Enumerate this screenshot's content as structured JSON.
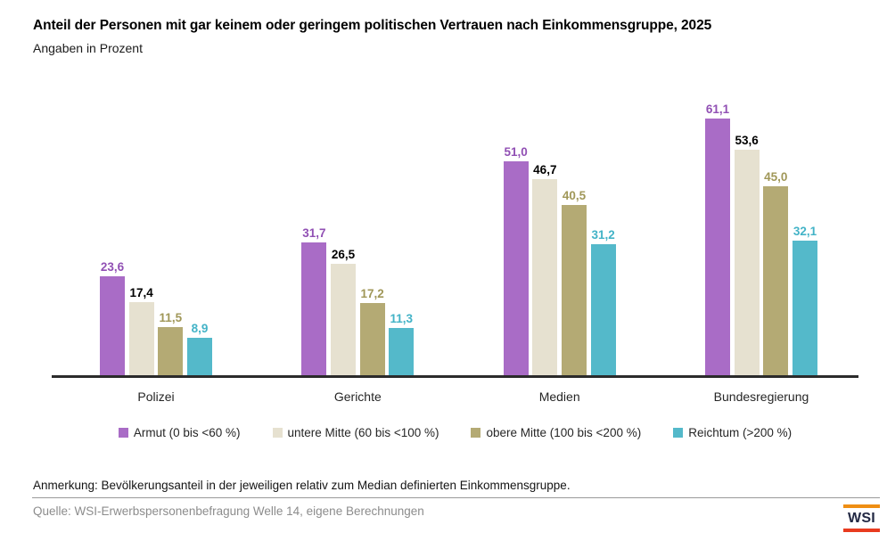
{
  "header": {
    "title": "Anteil der Personen mit gar keinem oder geringem politischen Vertrauen nach Einkommensgruppe, 2025",
    "subtitle": "Angaben in Prozent"
  },
  "chart_data": {
    "type": "bar",
    "title": "Anteil der Personen mit gar keinem oder geringem politischen Vertrauen nach Einkommensgruppe, 2025",
    "subtitle": "Angaben in Prozent",
    "categories": [
      "Polizei",
      "Gerichte",
      "Medien",
      "Bundesregierung"
    ],
    "series": [
      {
        "name": "Armut (0 bis <60 %)",
        "color": "#a96cc6",
        "label_color": "#9150b4",
        "values": [
          23.6,
          31.7,
          51.0,
          61.1
        ]
      },
      {
        "name": "untere Mitte (60 bis <100 %)",
        "color": "#e6e1d0",
        "label_color": "#000000",
        "values": [
          17.4,
          26.5,
          46.7,
          53.6
        ]
      },
      {
        "name": "obere Mitte (100 bis <200 %)",
        "color": "#b4aa74",
        "label_color": "#a09758",
        "values": [
          11.5,
          17.2,
          40.5,
          45.0
        ]
      },
      {
        "name": "Reichtum (>200 %)",
        "color": "#54b9ca",
        "label_color": "#43b3c7",
        "values": [
          8.9,
          11.3,
          31.2,
          32.1
        ]
      }
    ],
    "value_label_format": "decimal-comma-1",
    "xlabel": "",
    "ylabel": "",
    "ylim": [
      0,
      65
    ],
    "grid": false,
    "y_axis_visible": false,
    "legend_position": "bottom"
  },
  "footer": {
    "note": "Anmerkung: Bevölkerungsanteil in der jeweiligen relativ zum Median definierten Einkommensgruppe.",
    "source": "Quelle: WSI-Erwerbspersonenbefragung Welle 14, eigene Berechnungen",
    "logo_text": "WSI",
    "logo_colors": {
      "top_bar": "#ef8e13",
      "bottom_bar": "#e83b1f",
      "text": "#232944"
    }
  }
}
